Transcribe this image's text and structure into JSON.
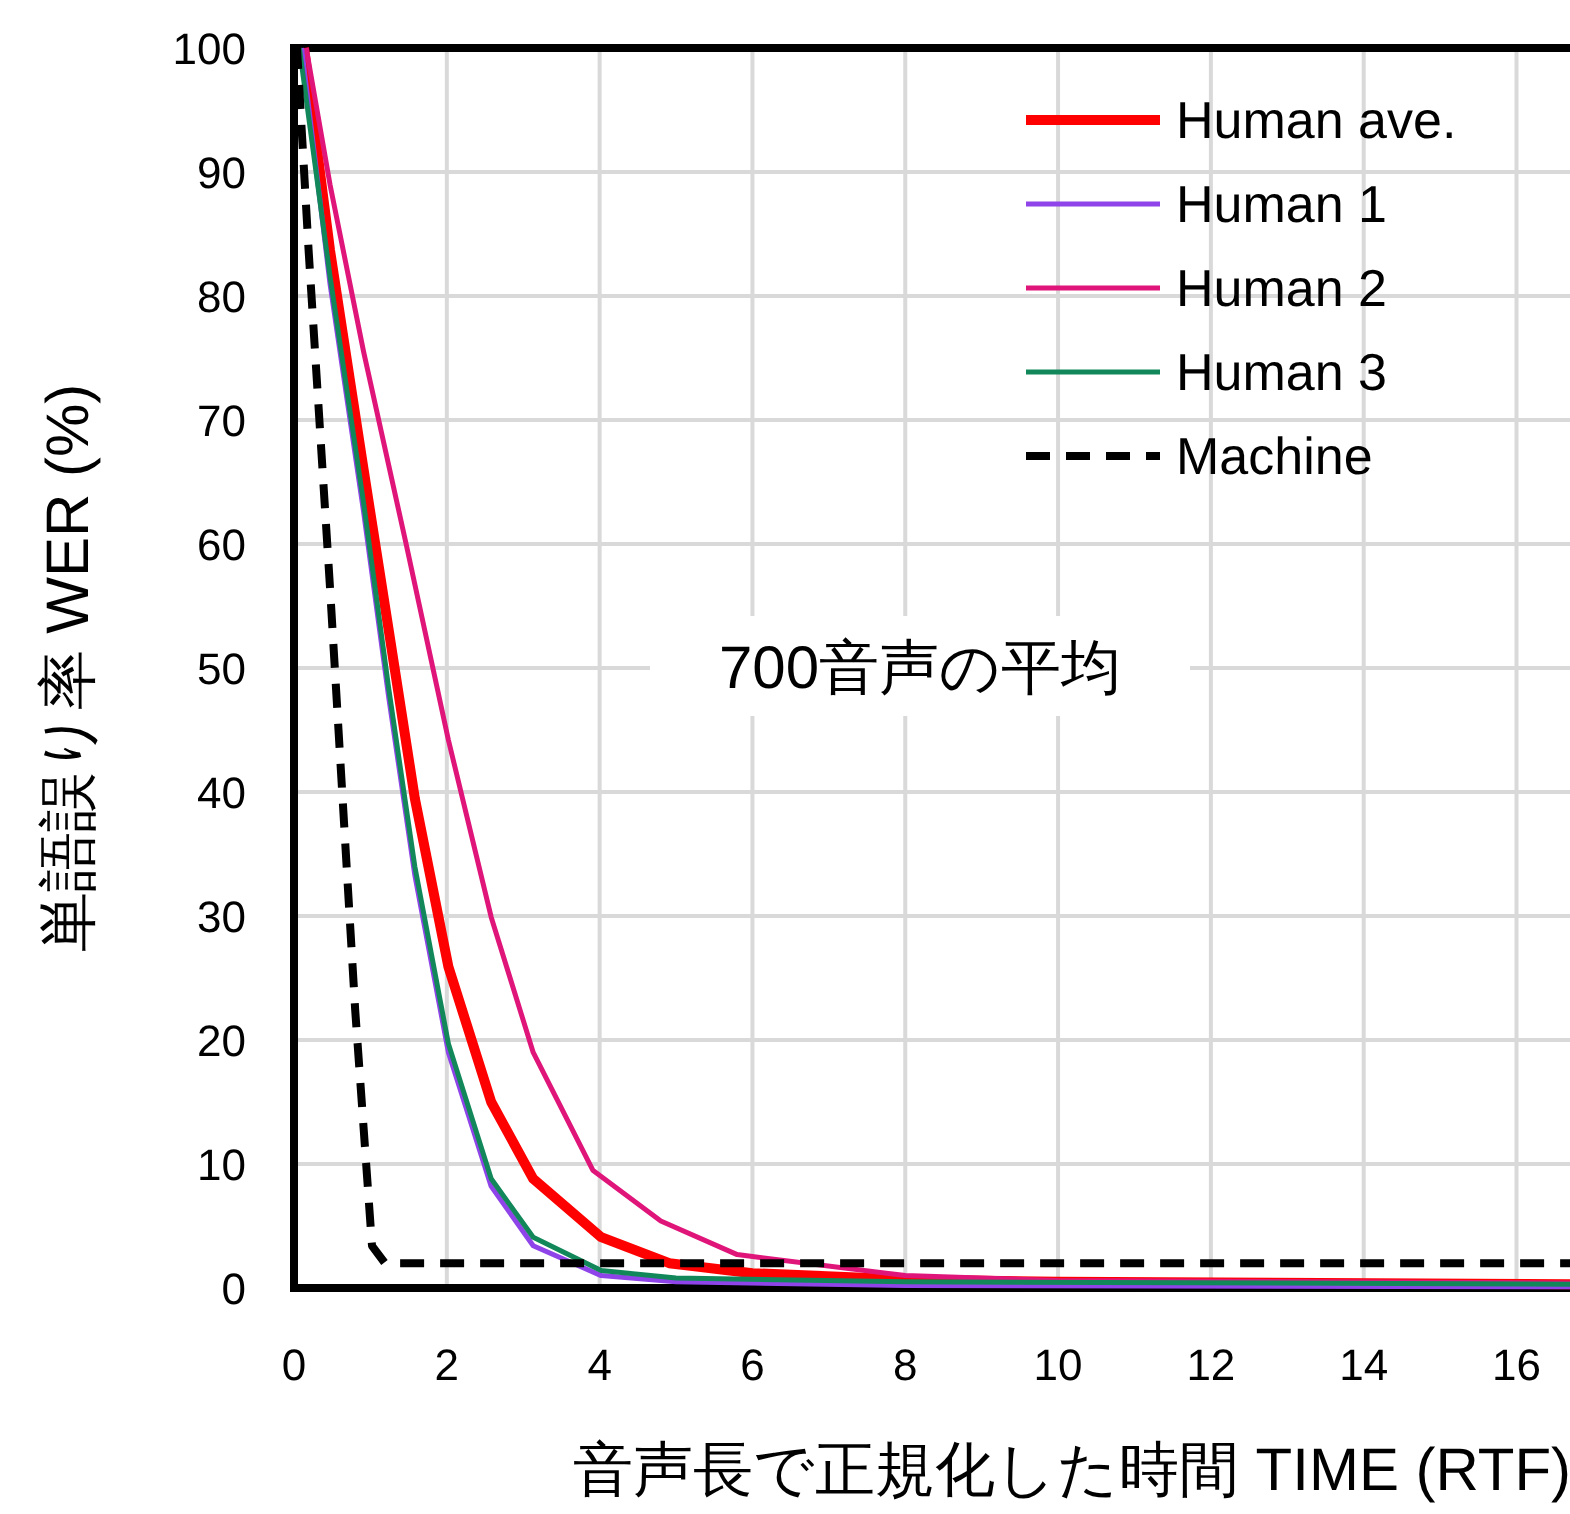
{
  "chart_data": {
    "type": "line",
    "xlabel": "音声長で正規化した時間 TIME (RTF)",
    "ylabel": "単語誤り率 WER (%)",
    "annotations": [
      "700音声の平均"
    ],
    "xlim": [
      0,
      16.7
    ],
    "ylim": [
      0,
      100
    ],
    "xticks": [
      0,
      2,
      4,
      6,
      8,
      10,
      12,
      14,
      16
    ],
    "yticks": [
      0,
      10,
      20,
      30,
      40,
      50,
      60,
      70,
      80,
      90,
      100
    ],
    "grid": true,
    "legend": "top right",
    "series": [
      {
        "name": "Human ave.",
        "color": "#ff0000",
        "x": [
          0.13,
          0.47,
          0.91,
          1.24,
          1.58,
          2.02,
          2.58,
          3.13,
          4.02,
          4.91,
          6,
          8,
          10,
          16.7
        ],
        "values": [
          100,
          83.7,
          66,
          53,
          39.5,
          25.9,
          15,
          8.8,
          4.1,
          2.0,
          1.2,
          0.7,
          0.5,
          0.3
        ]
      },
      {
        "name": "Human 1",
        "color": "#8e44e8",
        "x": [
          0.1,
          0.47,
          0.91,
          1.24,
          1.58,
          2.02,
          2.58,
          3.13,
          4.02,
          5,
          8,
          16.7
        ],
        "values": [
          100,
          81,
          62.6,
          47.6,
          33.3,
          19,
          8.2,
          3.4,
          1.0,
          0.5,
          0.2,
          0.1
        ]
      },
      {
        "name": "Human 2",
        "color": "#e0157a",
        "x": [
          0.16,
          0.47,
          0.91,
          1.47,
          2.02,
          2.58,
          3.13,
          3.91,
          4.8,
          5.8,
          8,
          10,
          16.7
        ],
        "values": [
          100,
          89,
          75.5,
          59.9,
          44.2,
          29.9,
          19,
          9.5,
          5.4,
          2.7,
          1,
          0.6,
          0.4
        ]
      },
      {
        "name": "Human 3",
        "color": "#12885a",
        "x": [
          0.07,
          0.47,
          0.91,
          1.24,
          1.58,
          2.02,
          2.58,
          3.13,
          4.02,
          5,
          8,
          16.7
        ],
        "values": [
          100,
          81.6,
          63.3,
          48.3,
          34,
          19.7,
          8.8,
          4.1,
          1.4,
          0.8,
          0.5,
          0.3
        ]
      },
      {
        "name": "Machine",
        "color": "#000000",
        "line_style": "dashed",
        "x": [
          0,
          0.04,
          0.19,
          0.47,
          0.8,
          1.02,
          1.19,
          16.7
        ],
        "values": [
          100,
          100,
          83.7,
          56.5,
          22.4,
          3.4,
          2.0,
          2.0
        ]
      }
    ]
  }
}
